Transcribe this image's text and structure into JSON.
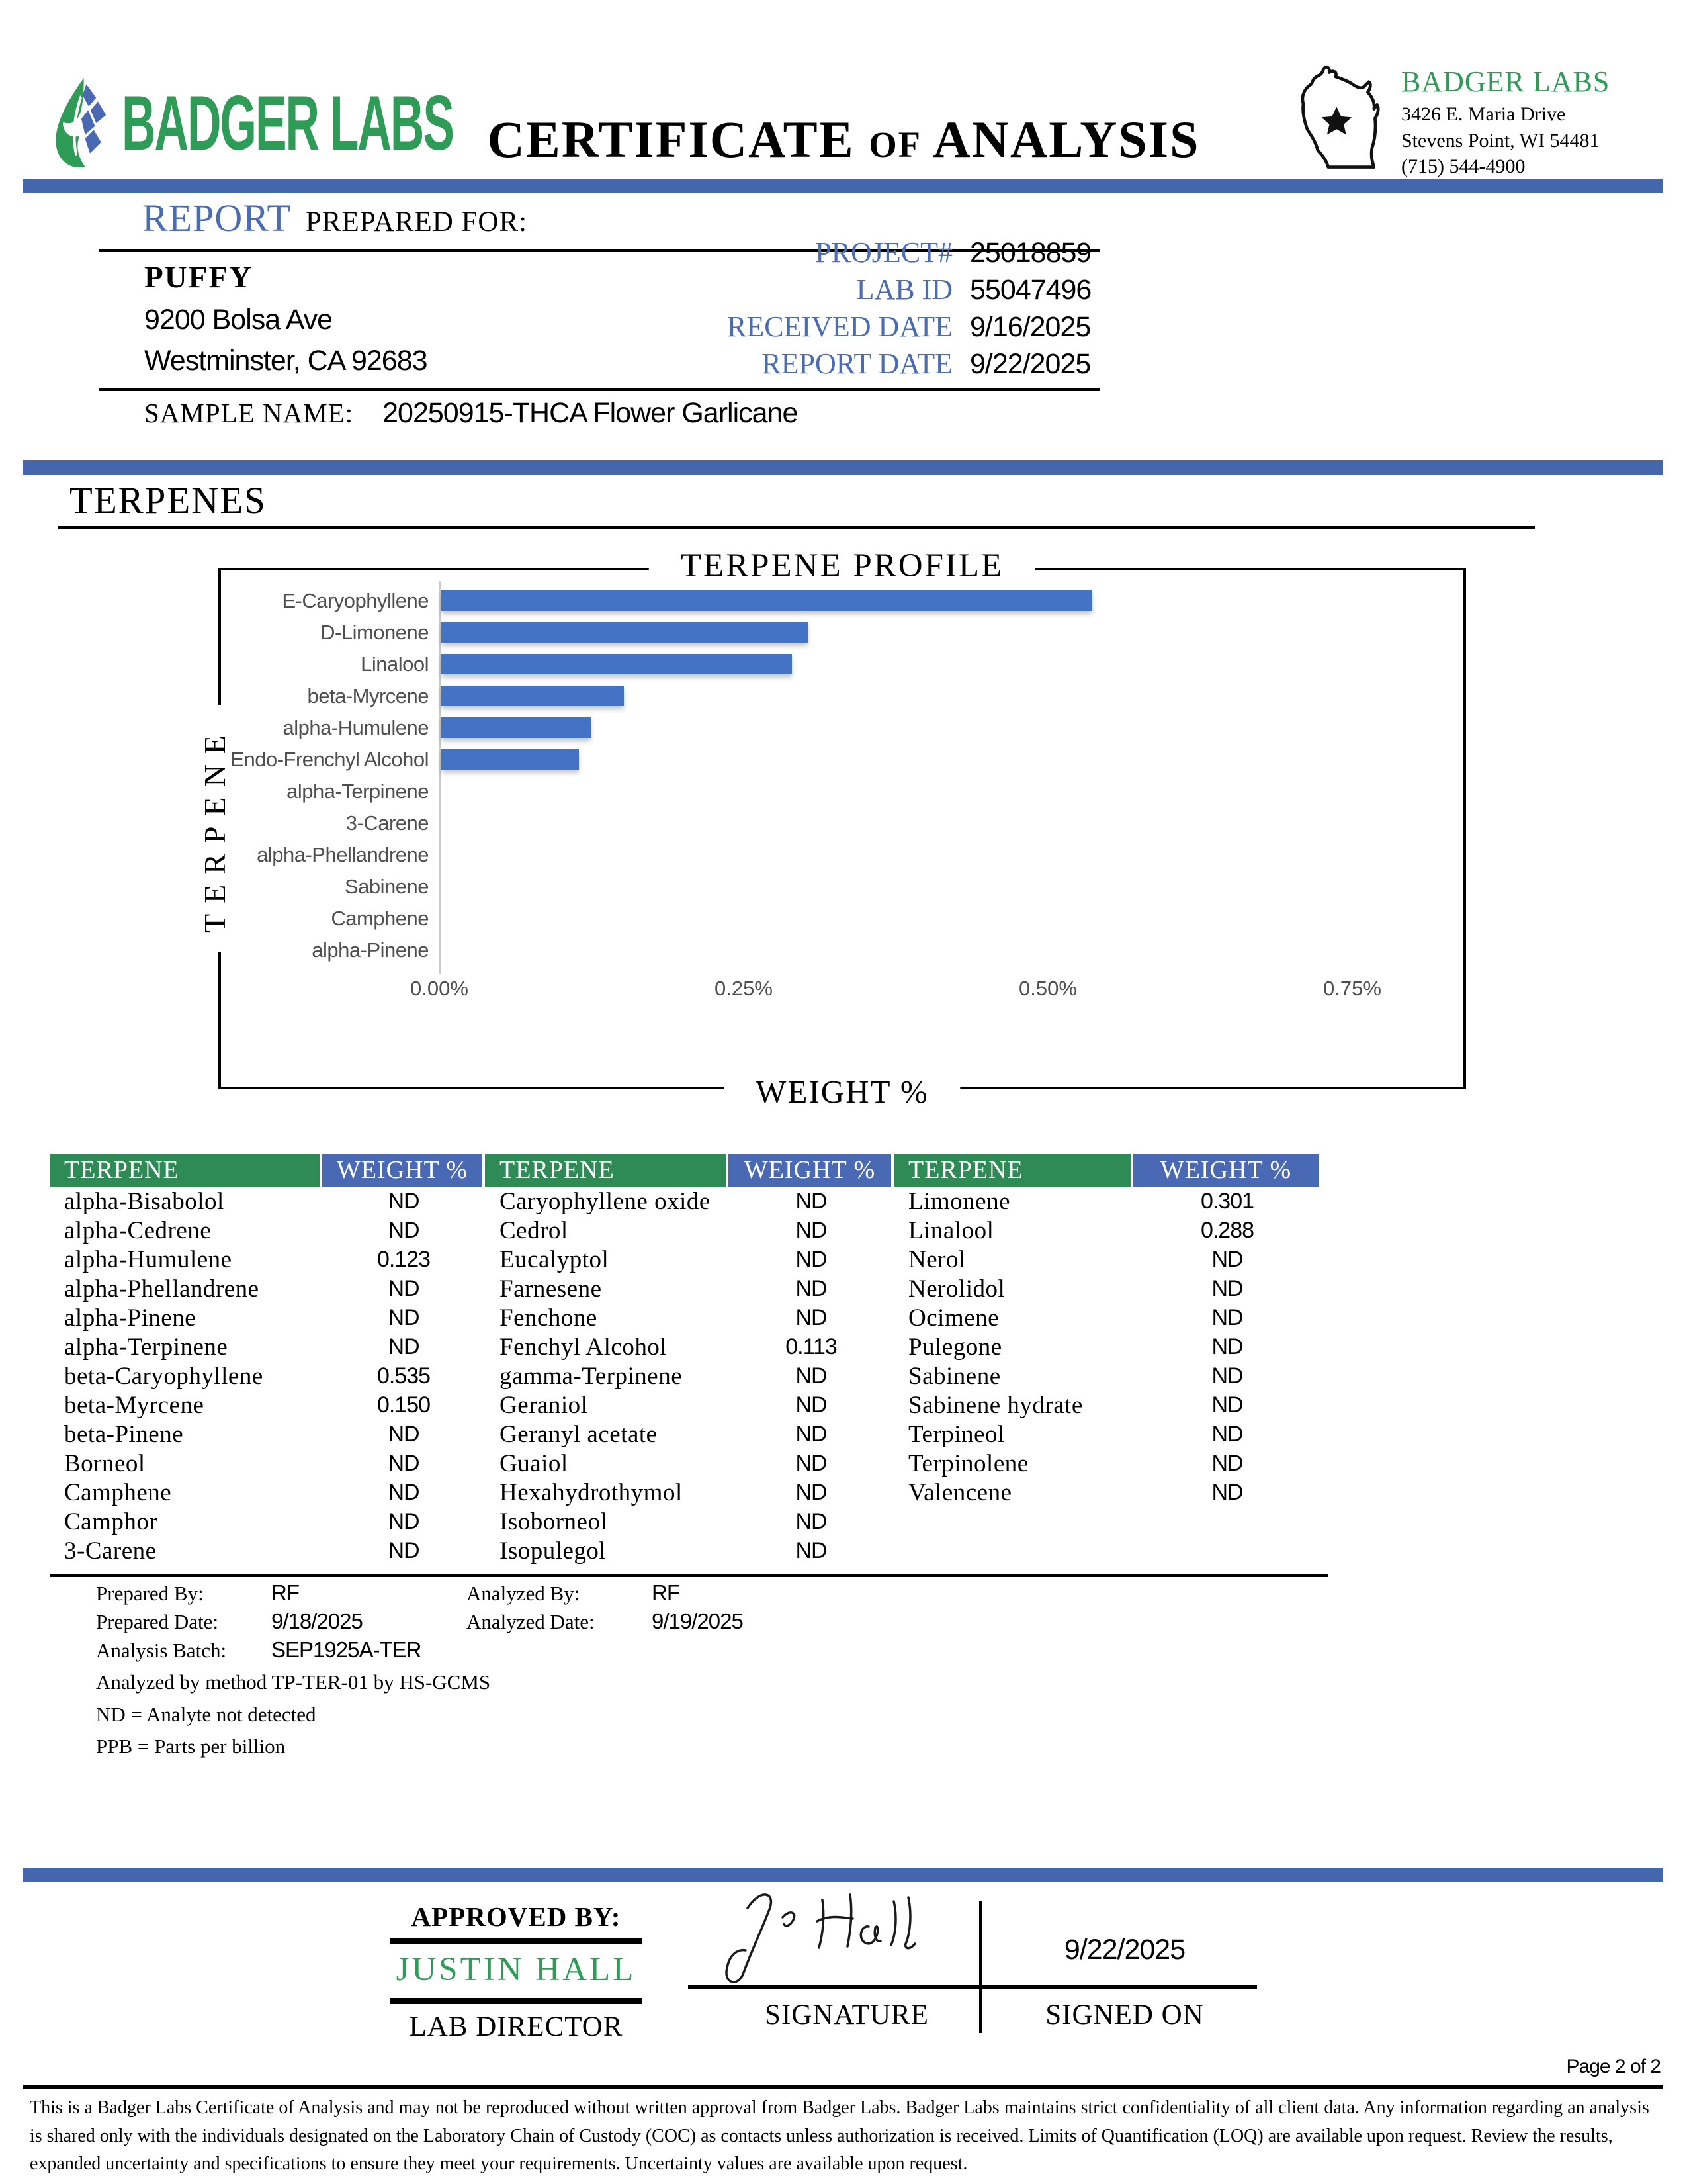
{
  "colors": {
    "brand_green": "#2e9b57",
    "divider_blue": "#4466ad",
    "label_blue": "#4a6cb5",
    "table_header_green": "#2f8b55",
    "table_header_blue": "#4a69b4",
    "bar_blue": "#4472c4"
  },
  "header": {
    "logo_text": "BADGER LABS",
    "title_main": "CERTIFICATE",
    "title_of": "OF",
    "title_rest": "ANALYSIS",
    "lab_name": "BADGER LABS",
    "address_line1": "3426 E. Maria Drive",
    "address_line2": "Stevens Point, WI 54481",
    "phone": "(715) 544-4900"
  },
  "report_info": {
    "heading_report": "REPORT",
    "heading_rest": "PREPARED FOR:",
    "client_name": "PUFFY",
    "client_address1": "9200 Bolsa Ave",
    "client_address2": "Westminster, CA 92683",
    "fields": [
      {
        "label": "PROJECT#",
        "value": "25018859"
      },
      {
        "label": "LAB ID",
        "value": "55047496"
      },
      {
        "label": "RECEIVED DATE",
        "value": "9/16/2025"
      },
      {
        "label": "REPORT DATE",
        "value": "9/22/2025"
      }
    ],
    "sample_name_label": "SAMPLE NAME:",
    "sample_name": "20250915-THCA Flower Garlicane"
  },
  "section_title": "TERPENES",
  "chart_data": {
    "type": "bar",
    "orientation": "horizontal",
    "title": "TERPENE PROFILE",
    "xlabel": "WEIGHT %",
    "ylabel": "TERPENE",
    "categories": [
      "E-Caryophyllene",
      "D-Limonene",
      "Linalool",
      "beta-Myrcene",
      "alpha-Humulene",
      "Endo-Frenchyl Alcohol",
      "alpha-Terpinene",
      "3-Carene",
      "alpha-Phellandrene",
      "Sabinene",
      "Camphene",
      "alpha-Pinene"
    ],
    "values": [
      0.535,
      0.301,
      0.288,
      0.15,
      0.123,
      0.113,
      0,
      0,
      0,
      0,
      0,
      0
    ],
    "xlim": [
      0,
      0.8
    ],
    "xticks": [
      "0.00%",
      "0.25%",
      "0.50%",
      "0.75%"
    ],
    "xtick_values": [
      0,
      0.25,
      0.5,
      0.75
    ],
    "grid": false,
    "legend": "none",
    "bar_color": "#4472c4"
  },
  "table": {
    "col_headers": [
      "TERPENE",
      "WEIGHT %"
    ],
    "groups": [
      {
        "rows": [
          [
            "alpha-Bisabolol",
            "ND"
          ],
          [
            "alpha-Cedrene",
            "ND"
          ],
          [
            "alpha-Humulene",
            "0.123"
          ],
          [
            "alpha-Phellandrene",
            "ND"
          ],
          [
            "alpha-Pinene",
            "ND"
          ],
          [
            "alpha-Terpinene",
            "ND"
          ],
          [
            "beta-Caryophyllene",
            "0.535"
          ],
          [
            "beta-Myrcene",
            "0.150"
          ],
          [
            "beta-Pinene",
            "ND"
          ],
          [
            "Borneol",
            "ND"
          ],
          [
            "Camphene",
            "ND"
          ],
          [
            "Camphor",
            "ND"
          ],
          [
            "3-Carene",
            "ND"
          ]
        ]
      },
      {
        "rows": [
          [
            "Caryophyllene oxide",
            "ND"
          ],
          [
            "Cedrol",
            "ND"
          ],
          [
            "Eucalyptol",
            "ND"
          ],
          [
            "Farnesene",
            "ND"
          ],
          [
            "Fenchone",
            "ND"
          ],
          [
            "Fenchyl Alcohol",
            "0.113"
          ],
          [
            "gamma-Terpinene",
            "ND"
          ],
          [
            "Geraniol",
            "ND"
          ],
          [
            "Geranyl acetate",
            "ND"
          ],
          [
            "Guaiol",
            "ND"
          ],
          [
            "Hexahydrothymol",
            "ND"
          ],
          [
            "Isoborneol",
            "ND"
          ],
          [
            "Isopulegol",
            "ND"
          ]
        ]
      },
      {
        "rows": [
          [
            "Limonene",
            "0.301"
          ],
          [
            "Linalool",
            "0.288"
          ],
          [
            "Nerol",
            "ND"
          ],
          [
            "Nerolidol",
            "ND"
          ],
          [
            "Ocimene",
            "ND"
          ],
          [
            "Pulegone",
            "ND"
          ],
          [
            "Sabinene",
            "ND"
          ],
          [
            "Sabinene hydrate",
            "ND"
          ],
          [
            "Terpineol",
            "ND"
          ],
          [
            "Terpinolene",
            "ND"
          ],
          [
            "Valencene",
            "ND"
          ]
        ]
      }
    ]
  },
  "analysis_meta": {
    "prepared_by_label": "Prepared By:",
    "prepared_by": "RF",
    "analyzed_by_label": "Analyzed By:",
    "analyzed_by": "RF",
    "prepared_date_label": "Prepared Date:",
    "prepared_date": "9/18/2025",
    "analyzed_date_label": "Analyzed Date:",
    "analyzed_date": "9/19/2025",
    "analysis_batch_label": "Analysis Batch:",
    "analysis_batch": "SEP1925A-TER",
    "method_note": "Analyzed by method TP-TER-01 by HS-GCMS",
    "nd_note": "ND = Analyte not detected",
    "ppb_note": "PPB = Parts per billion"
  },
  "approval": {
    "approved_by_label": "APPROVED BY:",
    "approver_name": "JUSTIN HALL",
    "approver_title": "LAB DIRECTOR",
    "signature_label": "SIGNATURE",
    "signed_on_label": "SIGNED ON",
    "signed_on_date": "9/22/2025"
  },
  "footer": {
    "page_label": "Page 2 of 2",
    "disclaimer": "This is a Badger Labs Certificate of Analysis and may not be reproduced without written approval from Badger Labs. Badger Labs maintains strict confidentiality of all client data. Any information regarding an analysis is shared only with the individuals designated on the Laboratory Chain of Custody (COC) as contacts unless authorization is received. Limits of Quantification (LOQ) are available upon request. Review the results, expanded uncertainty and specifications to ensure they meet your requirements. Uncertainty values are available upon request."
  }
}
